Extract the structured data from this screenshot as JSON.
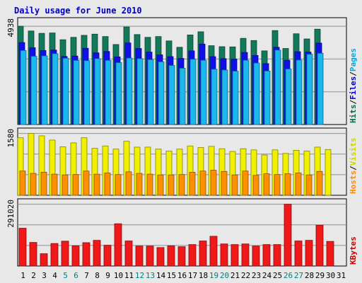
{
  "chart_data": {
    "type": "bar",
    "title": "Daily usage for June 2010",
    "categories": [
      "1",
      "2",
      "3",
      "4",
      "5",
      "6",
      "7",
      "8",
      "9",
      "10",
      "11",
      "12",
      "13",
      "14",
      "15",
      "16",
      "17",
      "18",
      "19",
      "20",
      "21",
      "22",
      "23",
      "24",
      "25",
      "26",
      "27",
      "28",
      "29",
      "30",
      "31"
    ],
    "weekend_days": [
      "5",
      "6",
      "12",
      "13",
      "19",
      "20",
      "26",
      "27"
    ],
    "panels": [
      {
        "id": "hits-files-pages",
        "max_label": "4938",
        "ylim": [
          0,
          4938
        ],
        "right_label": [
          {
            "text": "Hits",
            "color": "#006f45"
          },
          {
            "text": "/",
            "color": "#000000"
          },
          {
            "text": "Files",
            "color": "#0000cc"
          },
          {
            "text": "/",
            "color": "#000000"
          },
          {
            "text": "Pages",
            "color": "#00a8e0"
          }
        ],
        "series": [
          {
            "name": "Hits",
            "color": "#127a5a",
            "values": [
              4938,
              4700,
              4580,
              4600,
              4260,
              4380,
              4480,
              4540,
              4420,
              4020,
              4900,
              4520,
              4380,
              4420,
              4200,
              3880,
              4500,
              4660,
              3960,
              3910,
              3900,
              4330,
              4220,
              3700,
              4720,
              3820,
              4560,
              4300,
              4790,
              null,
              null
            ]
          },
          {
            "name": "Files",
            "color": "#1010e8",
            "values": [
              4120,
              3860,
              3720,
              3740,
              3420,
              3440,
              3830,
              3600,
              3670,
              3400,
              4100,
              3820,
              3640,
              3500,
              3410,
              3320,
              3700,
              4040,
              3410,
              3310,
              3290,
              3620,
              3470,
              3060,
              3880,
              3230,
              3660,
              3640,
              4090,
              null,
              null
            ]
          },
          {
            "name": "Pages",
            "color": "#1ab8ec",
            "values": [
              3720,
              3430,
              3450,
              3560,
              3330,
              3220,
              3210,
              3310,
              3220,
              3110,
              3340,
              3310,
              3260,
              3150,
              2970,
              2830,
              3280,
              3230,
              2780,
              2740,
              2680,
              3230,
              3090,
              2690,
              3740,
              2790,
              3240,
              3530,
              3580,
              null,
              null
            ]
          }
        ]
      },
      {
        "id": "hosts-visits",
        "max_label": "1580",
        "ylim": [
          0,
          1580
        ],
        "right_label": [
          {
            "text": "Hosts",
            "color": "#ff8800"
          },
          {
            "text": "/",
            "color": "#000000"
          },
          {
            "text": "Visits",
            "color": "#d4d400"
          }
        ],
        "series": [
          {
            "name": "Visits",
            "color": "#f0f000",
            "values": [
              1470,
              1580,
              1520,
              1410,
              1240,
              1340,
              1470,
              1200,
              1260,
              1180,
              1380,
              1230,
              1230,
              1180,
              1130,
              1180,
              1260,
              1220,
              1250,
              1190,
              1120,
              1190,
              1160,
              1030,
              1160,
              1070,
              1150,
              1130,
              1230,
              1170,
              null
            ]
          },
          {
            "name": "Hosts",
            "color": "#ff9000",
            "values": [
              620,
              560,
              590,
              540,
              520,
              530,
              620,
              540,
              570,
              530,
              600,
              560,
              540,
              520,
              520,
              530,
              590,
              620,
              640,
              610,
              520,
              620,
              510,
              550,
              530,
              550,
              570,
              520,
              610,
              null,
              null
            ]
          }
        ]
      },
      {
        "id": "kbytes",
        "max_label": "291020",
        "ylim": [
          0,
          291020
        ],
        "right_label": [
          {
            "text": "KBytes",
            "color": "#cc0000"
          }
        ],
        "series": [
          {
            "name": "KBytes",
            "color": "#f01818",
            "values": [
              178000,
              111000,
              58000,
              106000,
              117000,
              95000,
              110000,
              121000,
              98000,
              199000,
              118000,
              94000,
              94000,
              87000,
              95000,
              91000,
              101000,
              118000,
              140000,
              104000,
              101000,
              104000,
              94000,
              101000,
              101000,
              291020,
              118000,
              121000,
              192000,
              116000,
              null
            ]
          }
        ]
      }
    ]
  }
}
